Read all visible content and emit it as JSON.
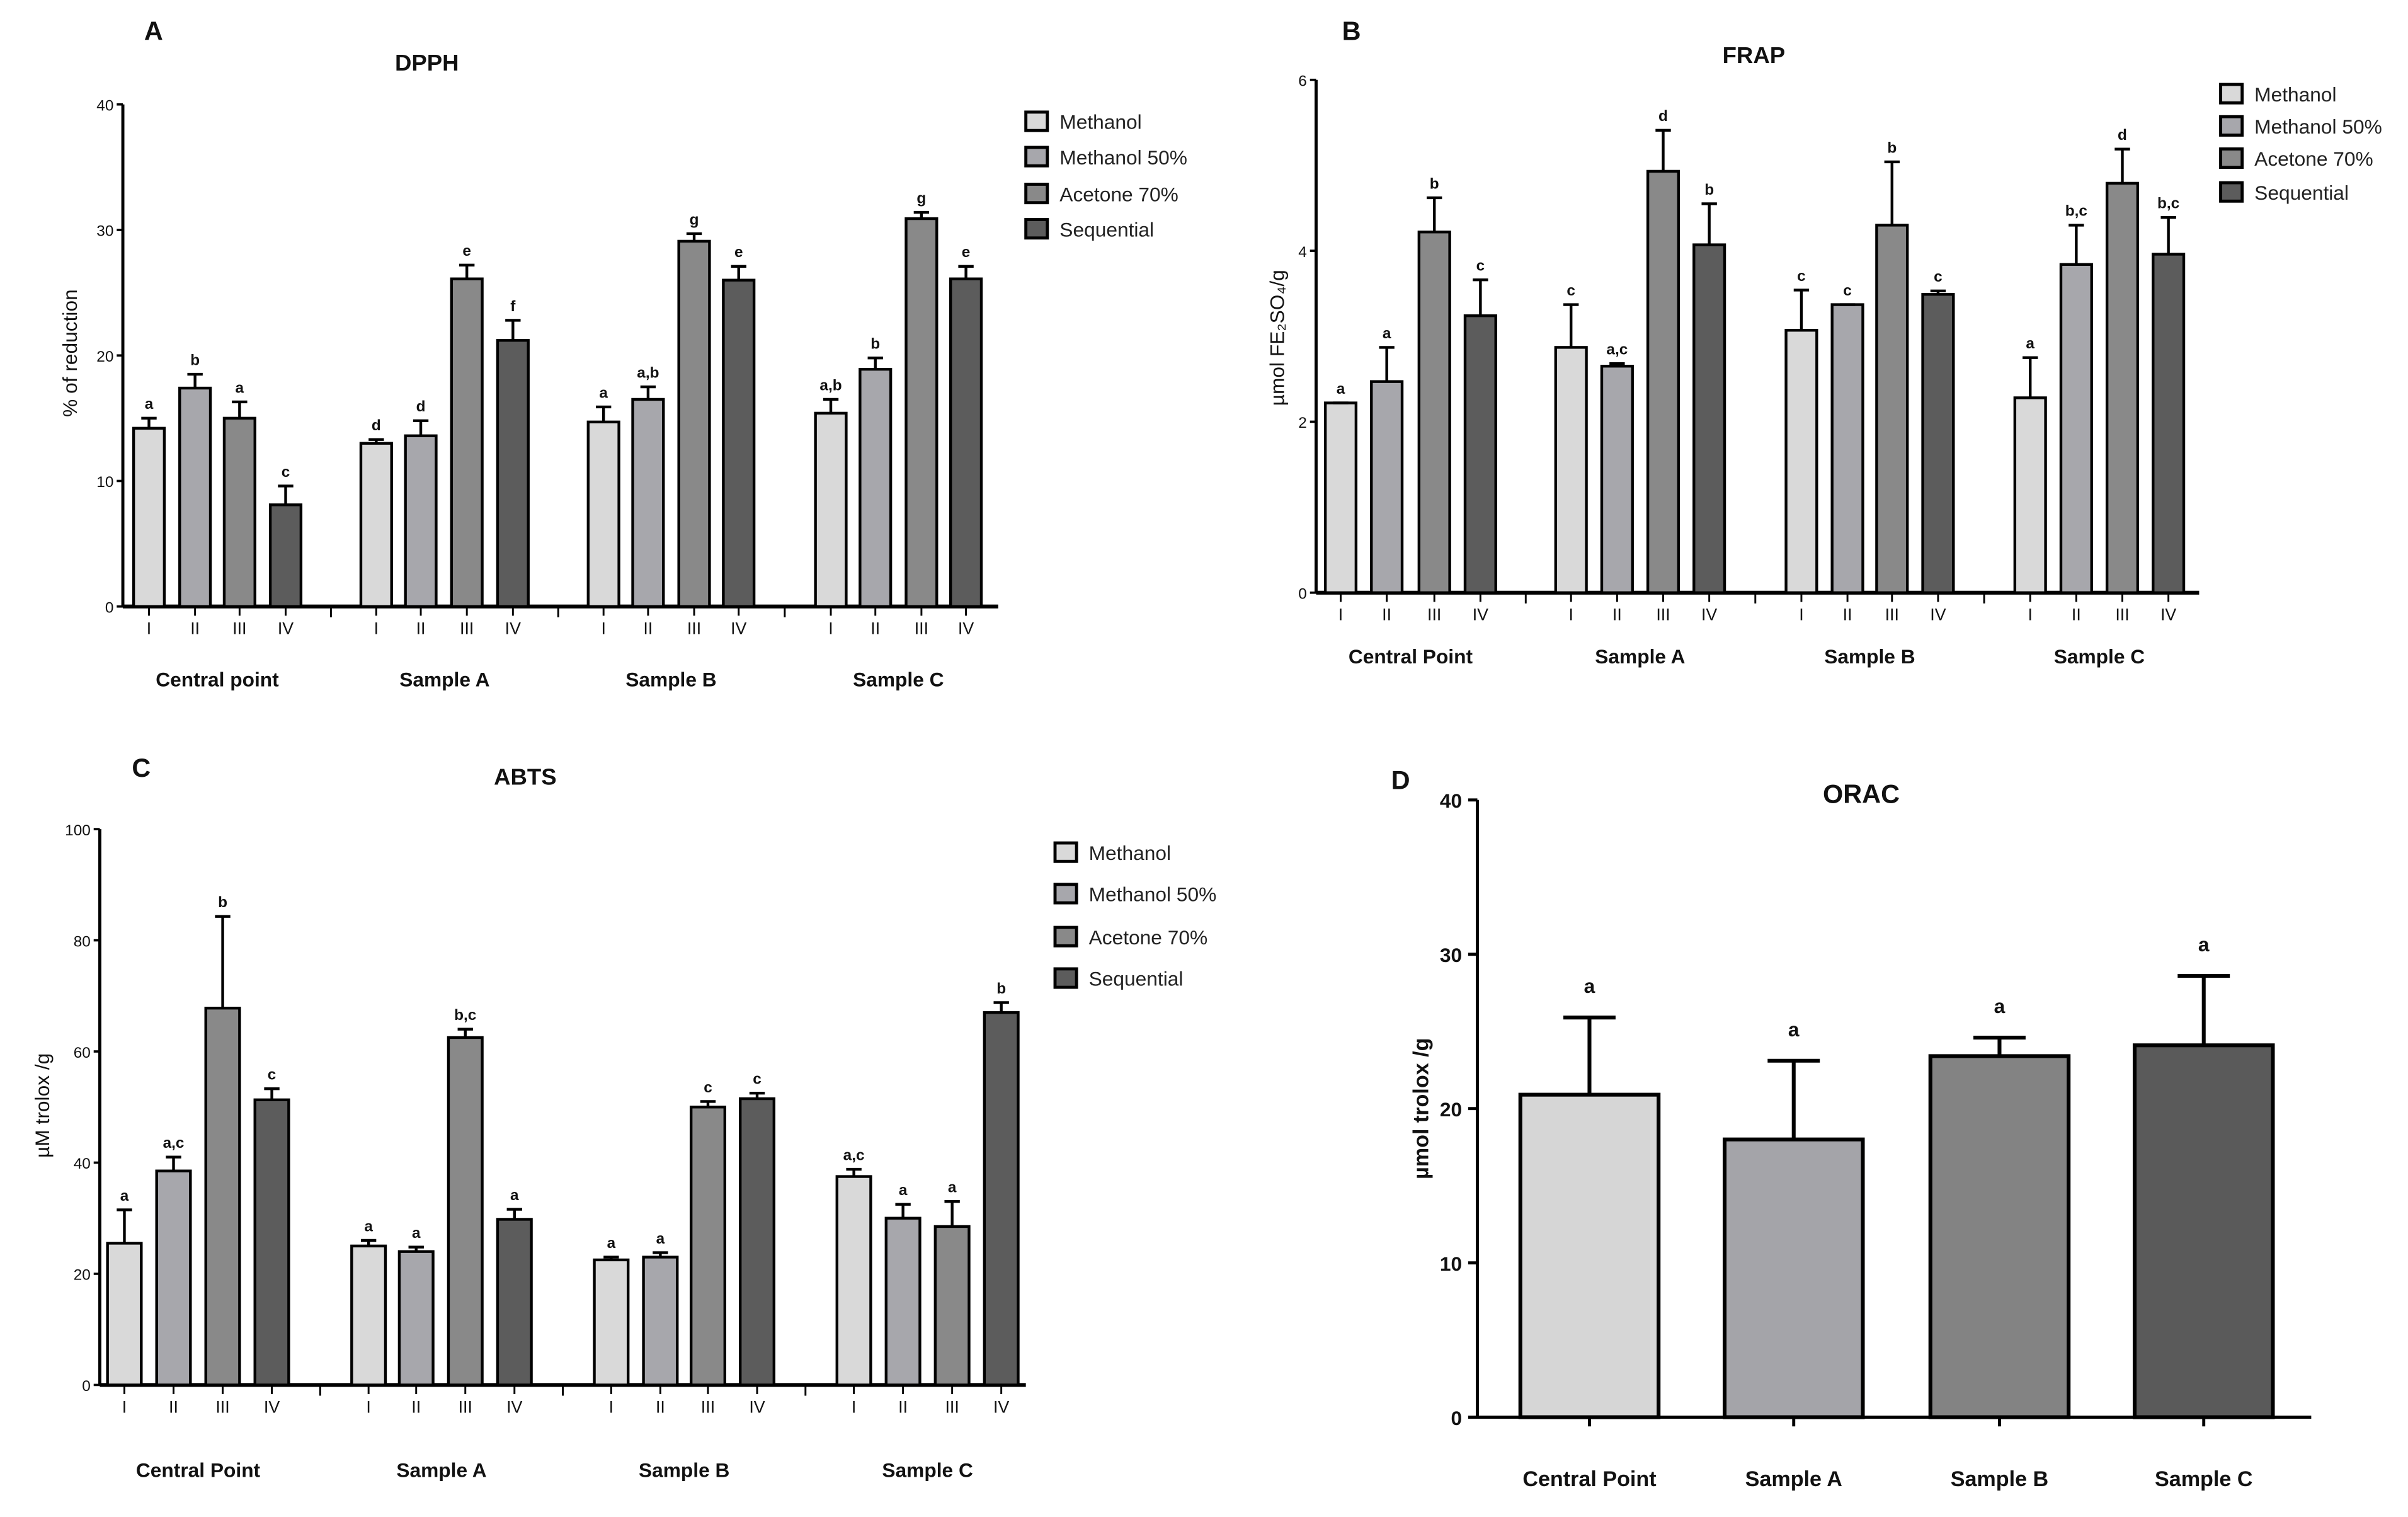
{
  "figure": {
    "colors": {
      "Methanol": "#d9d9d9",
      "Methanol 50%": "#a7a7ac",
      "Acetone 70%": "#898989",
      "Sequential": "#5c5c5c"
    },
    "orac_colors": [
      "#d6d6d6",
      "#a4a4a9",
      "#838383",
      "#5a5a5a"
    ]
  },
  "chart_data": [
    {
      "panel": "A",
      "type": "bar",
      "title": "DPPH",
      "ylabel": "% of reduction",
      "ylim": [
        0,
        40
      ],
      "yticks": [
        0,
        10,
        20,
        30,
        40
      ],
      "groups": [
        "Central point",
        "Sample A",
        "Sample B",
        "Sample C"
      ],
      "subcategories": [
        "I",
        "II",
        "III",
        "IV"
      ],
      "legend": [
        "Methanol",
        "Methanol 50%",
        "Acetone 70%",
        "Sequential"
      ],
      "legend_position": "top-right",
      "series": [
        {
          "name": "Central point",
          "values": [
            14.2,
            17.4,
            15.0,
            8.1
          ],
          "errors": [
            0.8,
            1.1,
            1.3,
            1.5
          ],
          "letters": [
            "a",
            "b",
            "a",
            "c"
          ]
        },
        {
          "name": "Sample A",
          "values": [
            13.0,
            13.6,
            26.1,
            21.2
          ],
          "errors": [
            0.3,
            1.2,
            1.1,
            1.6
          ],
          "letters": [
            "d",
            "d",
            "e",
            "f"
          ]
        },
        {
          "name": "Sample B",
          "values": [
            14.7,
            16.5,
            29.1,
            26.0
          ],
          "errors": [
            1.2,
            1.0,
            0.6,
            1.1
          ],
          "letters": [
            "a",
            "a,b",
            "g",
            "e"
          ]
        },
        {
          "name": "Sample C",
          "values": [
            15.4,
            18.9,
            30.9,
            26.1
          ],
          "errors": [
            1.1,
            0.9,
            0.5,
            1.0
          ],
          "letters": [
            "a,b",
            "b",
            "g",
            "e"
          ]
        }
      ]
    },
    {
      "panel": "B",
      "type": "bar",
      "title": "FRAP",
      "ylabel": "µmol FE₂SO₄/g",
      "ylim": [
        0,
        6
      ],
      "yticks": [
        0,
        2,
        4,
        6
      ],
      "groups": [
        "Central Point",
        "Sample A",
        "Sample B",
        "Sample C"
      ],
      "subcategories": [
        "I",
        "II",
        "III",
        "IV"
      ],
      "legend": [
        "Methanol",
        "Methanol 50%",
        "Acetone 70%",
        "Sequential"
      ],
      "legend_position": "top-right",
      "series": [
        {
          "name": "Central Point",
          "values": [
            2.22,
            2.47,
            4.22,
            3.24
          ],
          "errors": [
            0.0,
            0.4,
            0.4,
            0.42
          ],
          "letters": [
            "a",
            "a",
            "b",
            "c"
          ]
        },
        {
          "name": "Sample A",
          "values": [
            2.87,
            2.65,
            4.93,
            4.07
          ],
          "errors": [
            0.5,
            0.03,
            0.48,
            0.48
          ],
          "letters": [
            "c",
            "a,c",
            "d",
            "b"
          ]
        },
        {
          "name": "Sample B",
          "values": [
            3.07,
            3.37,
            4.3,
            3.49
          ],
          "errors": [
            0.47,
            0.0,
            0.74,
            0.04
          ],
          "letters": [
            "c",
            "c",
            "b",
            "c"
          ]
        },
        {
          "name": "Sample C",
          "values": [
            2.28,
            3.84,
            4.79,
            3.96
          ],
          "errors": [
            0.47,
            0.46,
            0.4,
            0.43
          ],
          "letters": [
            "a",
            "b,c",
            "d",
            "b,c"
          ]
        }
      ]
    },
    {
      "panel": "C",
      "type": "bar",
      "title": "ABTS",
      "ylabel": "µM trolox /g",
      "ylim": [
        0,
        100
      ],
      "yticks": [
        0,
        20,
        40,
        60,
        80,
        100
      ],
      "groups": [
        "Central Point",
        "Sample A",
        "Sample B",
        "Sample C"
      ],
      "subcategories": [
        "I",
        "II",
        "III",
        "IV"
      ],
      "legend": [
        "Methanol",
        "Methanol 50%",
        "Acetone 70%",
        "Sequential"
      ],
      "legend_position": "top-right",
      "series": [
        {
          "name": "Central Point",
          "values": [
            25.5,
            38.5,
            67.8,
            51.3
          ],
          "errors": [
            6.0,
            2.5,
            16.5,
            2.0
          ],
          "letters": [
            "a",
            "a,c",
            "b",
            "c"
          ]
        },
        {
          "name": "Sample A",
          "values": [
            25.0,
            24.0,
            62.5,
            29.8
          ],
          "errors": [
            1.0,
            0.8,
            1.5,
            1.8
          ],
          "letters": [
            "a",
            "a",
            "b,c",
            "a"
          ]
        },
        {
          "name": "Sample B",
          "values": [
            22.5,
            23.0,
            50.0,
            51.5
          ],
          "errors": [
            0.5,
            0.8,
            1.0,
            1.0
          ],
          "letters": [
            "a",
            "a",
            "c",
            "c"
          ]
        },
        {
          "name": "Sample C",
          "values": [
            37.5,
            30.0,
            28.5,
            67.0
          ],
          "errors": [
            1.3,
            2.5,
            4.5,
            1.8
          ],
          "letters": [
            "a,c",
            "a",
            "a",
            "b"
          ]
        }
      ]
    },
    {
      "panel": "D",
      "type": "bar",
      "title": "ORAC",
      "ylabel": "µmol trolox /g",
      "ylim": [
        0,
        40
      ],
      "yticks": [
        0,
        10,
        20,
        30,
        40
      ],
      "categories": [
        "Central Point",
        "Sample A",
        "Sample B",
        "Sample C"
      ],
      "values": [
        20.9,
        18.0,
        23.4,
        24.1
      ],
      "errors": [
        5.0,
        5.1,
        1.2,
        4.5
      ],
      "letters": [
        "a",
        "a",
        "a",
        "a"
      ]
    }
  ]
}
